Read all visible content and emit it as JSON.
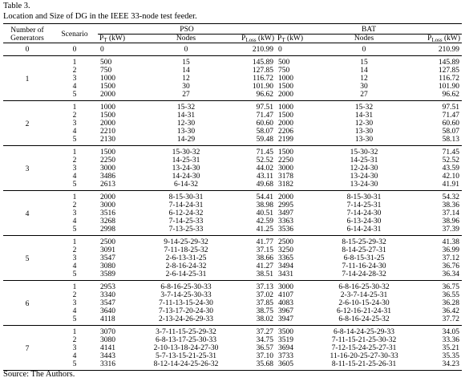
{
  "header": {
    "table_label": "Table 3.",
    "caption": "Location and Size of DG in the IEEE 33-node test feeder."
  },
  "table": {
    "columns": {
      "generators": "Number of Generators",
      "scenario": "Scenario",
      "groups": [
        {
          "name": "PSO",
          "subcolumns": [
            {
              "symbol": "P",
              "subscript": "T",
              "unit": "(kW)"
            },
            {
              "symbol": "Nodes"
            },
            {
              "symbol": "P",
              "subscript": "Loss",
              "unit": "(kW)"
            }
          ]
        },
        {
          "name": "BAT",
          "subcolumns": [
            {
              "symbol": "P",
              "subscript": "T",
              "unit": "(kW)"
            },
            {
              "symbol": "Nodes"
            },
            {
              "symbol": "P",
              "subscript": "Loss",
              "unit": "(kW)"
            }
          ]
        }
      ]
    },
    "groups": [
      {
        "generators": "0",
        "rows": [
          [
            "0",
            "0",
            "0",
            "210.99",
            "0",
            "0",
            "210.99"
          ]
        ]
      },
      {
        "generators": "1",
        "rows": [
          [
            "1",
            "500",
            "15",
            "145.89",
            "500",
            "15",
            "145.89"
          ],
          [
            "2",
            "750",
            "14",
            "127.85",
            "750",
            "14",
            "127.85"
          ],
          [
            "3",
            "1000",
            "12",
            "116.72",
            "1000",
            "12",
            "116.72"
          ],
          [
            "4",
            "1500",
            "30",
            "101.90",
            "1500",
            "30",
            "101.90"
          ],
          [
            "5",
            "2000",
            "27",
            "96.62",
            "2000",
            "27",
            "96.62"
          ]
        ]
      },
      {
        "generators": "2",
        "rows": [
          [
            "1",
            "1000",
            "15-32",
            "97.51",
            "1000",
            "15-32",
            "97.51"
          ],
          [
            "2",
            "1500",
            "14-31",
            "71.47",
            "1500",
            "14-31",
            "71.47"
          ],
          [
            "3",
            "2000",
            "12-30",
            "60.60",
            "2000",
            "12-30",
            "60.60"
          ],
          [
            "4",
            "2210",
            "13-30",
            "58.07",
            "2206",
            "13-30",
            "58.07"
          ],
          [
            "5",
            "2130",
            "14-29",
            "59.48",
            "2199",
            "13-30",
            "58.13"
          ]
        ]
      },
      {
        "generators": "3",
        "rows": [
          [
            "1",
            "1500",
            "15-30-32",
            "71.45",
            "1500",
            "15-30-32",
            "71.45"
          ],
          [
            "2",
            "2250",
            "14-25-31",
            "52.52",
            "2250",
            "14-25-31",
            "52.52"
          ],
          [
            "3",
            "3000",
            "13-24-30",
            "44.02",
            "3000",
            "12-24-30",
            "43.59"
          ],
          [
            "4",
            "3486",
            "14-24-30",
            "43.11",
            "3178",
            "13-24-30",
            "42.10"
          ],
          [
            "5",
            "2613",
            "6-14-32",
            "49.68",
            "3182",
            "13-24-30",
            "41.91"
          ]
        ]
      },
      {
        "generators": "4",
        "rows": [
          [
            "1",
            "2000",
            "8-15-30-31",
            "54.41",
            "2000",
            "8-15-30-31",
            "54.32"
          ],
          [
            "2",
            "3000",
            "7-14-24-31",
            "38.98",
            "2995",
            "7-14-25-31",
            "38.36"
          ],
          [
            "3",
            "3516",
            "6-12-24-32",
            "40.51",
            "3497",
            "7-14-24-30",
            "37.14"
          ],
          [
            "4",
            "3268",
            "7-14-25-33",
            "42.59",
            "3363",
            "6-13-24-30",
            "38.96"
          ],
          [
            "5",
            "2998",
            "7-13-25-33",
            "41.25",
            "3536",
            "6-14-24-31",
            "37.39"
          ]
        ]
      },
      {
        "generators": "5",
        "rows": [
          [
            "1",
            "2500",
            "9-14-25-29-32",
            "41.77",
            "2500",
            "8-15-25-29-32",
            "41.38"
          ],
          [
            "2",
            "3091",
            "7-11-18-25-32",
            "37.15",
            "3250",
            "8-14-25-27-31",
            "36.99"
          ],
          [
            "3",
            "3547",
            "2-6-13-31-25",
            "38.66",
            "3365",
            "6-8-15-31-25",
            "37.12"
          ],
          [
            "4",
            "3080",
            "2-8-16-24-32",
            "41.27",
            "3494",
            "7-11-16-24-30",
            "36.76"
          ],
          [
            "5",
            "3589",
            "2-6-14-25-31",
            "38.51",
            "3431",
            "7-14-24-28-32",
            "36.34"
          ]
        ]
      },
      {
        "generators": "6",
        "rows": [
          [
            "1",
            "2953",
            "6-8-16-25-30-33",
            "37.13",
            "3000",
            "6-8-16-25-30-32",
            "36.75"
          ],
          [
            "2",
            "3340",
            "3-7-14-25-30-33",
            "37.02",
            "4107",
            "2-3-7-14-25-31",
            "36.55"
          ],
          [
            "3",
            "3547",
            "7-11-13-15-24-30",
            "37.85",
            "4083",
            "2-6-10-15-24-30",
            "36.28"
          ],
          [
            "4",
            "3640",
            "7-13-17-20-24-30",
            "38.75",
            "3967",
            "6-12-16-21-24-31",
            "36.42"
          ],
          [
            "5",
            "4118",
            "2-13-24-26-29-33",
            "38.02",
            "3947",
            "6-8-16-24-25-32",
            "37.72"
          ]
        ]
      },
      {
        "generators": "7",
        "rows": [
          [
            "1",
            "3070",
            "3-7-11-15-25-29-32",
            "37.27",
            "3500",
            "6-8-14-24-25-29-33",
            "34.05"
          ],
          [
            "2",
            "3080",
            "6-8-13-17-25-30-33",
            "34.75",
            "3519",
            "7-11-15-21-25-30-32",
            "33.36"
          ],
          [
            "3",
            "4141",
            "2-10-13-18-24-27-30",
            "36.57",
            "3694",
            "7-12-15-24-25-27-31",
            "35.21"
          ],
          [
            "4",
            "3443",
            "5-7-13-15-21-25-31",
            "37.10",
            "3733",
            "11-16-20-25-27-30-33",
            "35.35"
          ],
          [
            "5",
            "3316",
            "8-12-14-24-25-26-32",
            "35.68",
            "3605",
            "8-11-15-21-25-26-31",
            "34.23"
          ]
        ]
      }
    ]
  },
  "footer": {
    "source": "Source: The Authors."
  }
}
